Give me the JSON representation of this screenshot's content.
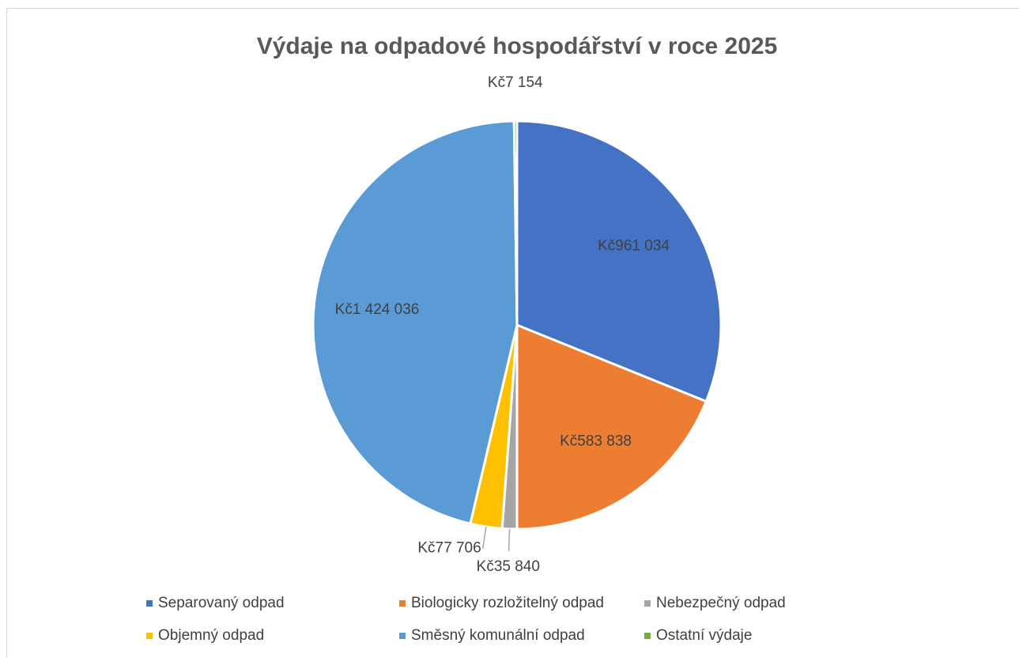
{
  "chart_data": {
    "type": "pie",
    "title": "Výdaje na odpadové hospodářství v roce 2025",
    "categories": [
      "Separovaný odpad",
      "Biologicky rozložitelný odpad",
      "Nebezpečný odpad",
      "Objemný odpad",
      "Směsný komunální odpad",
      "Ostatní výdaje"
    ],
    "values": [
      961034,
      583838,
      35840,
      77706,
      1424036,
      7154
    ],
    "value_labels": [
      "Kč961 034",
      "Kč583 838",
      "Kč35 840",
      "Kč77 706",
      "Kč1 424 036",
      "Kč7 154"
    ],
    "colors": [
      "#4472c4",
      "#ed7d31",
      "#a5a5a5",
      "#ffc000",
      "#5b9bd5",
      "#70ad47"
    ],
    "legend": "bottom"
  }
}
